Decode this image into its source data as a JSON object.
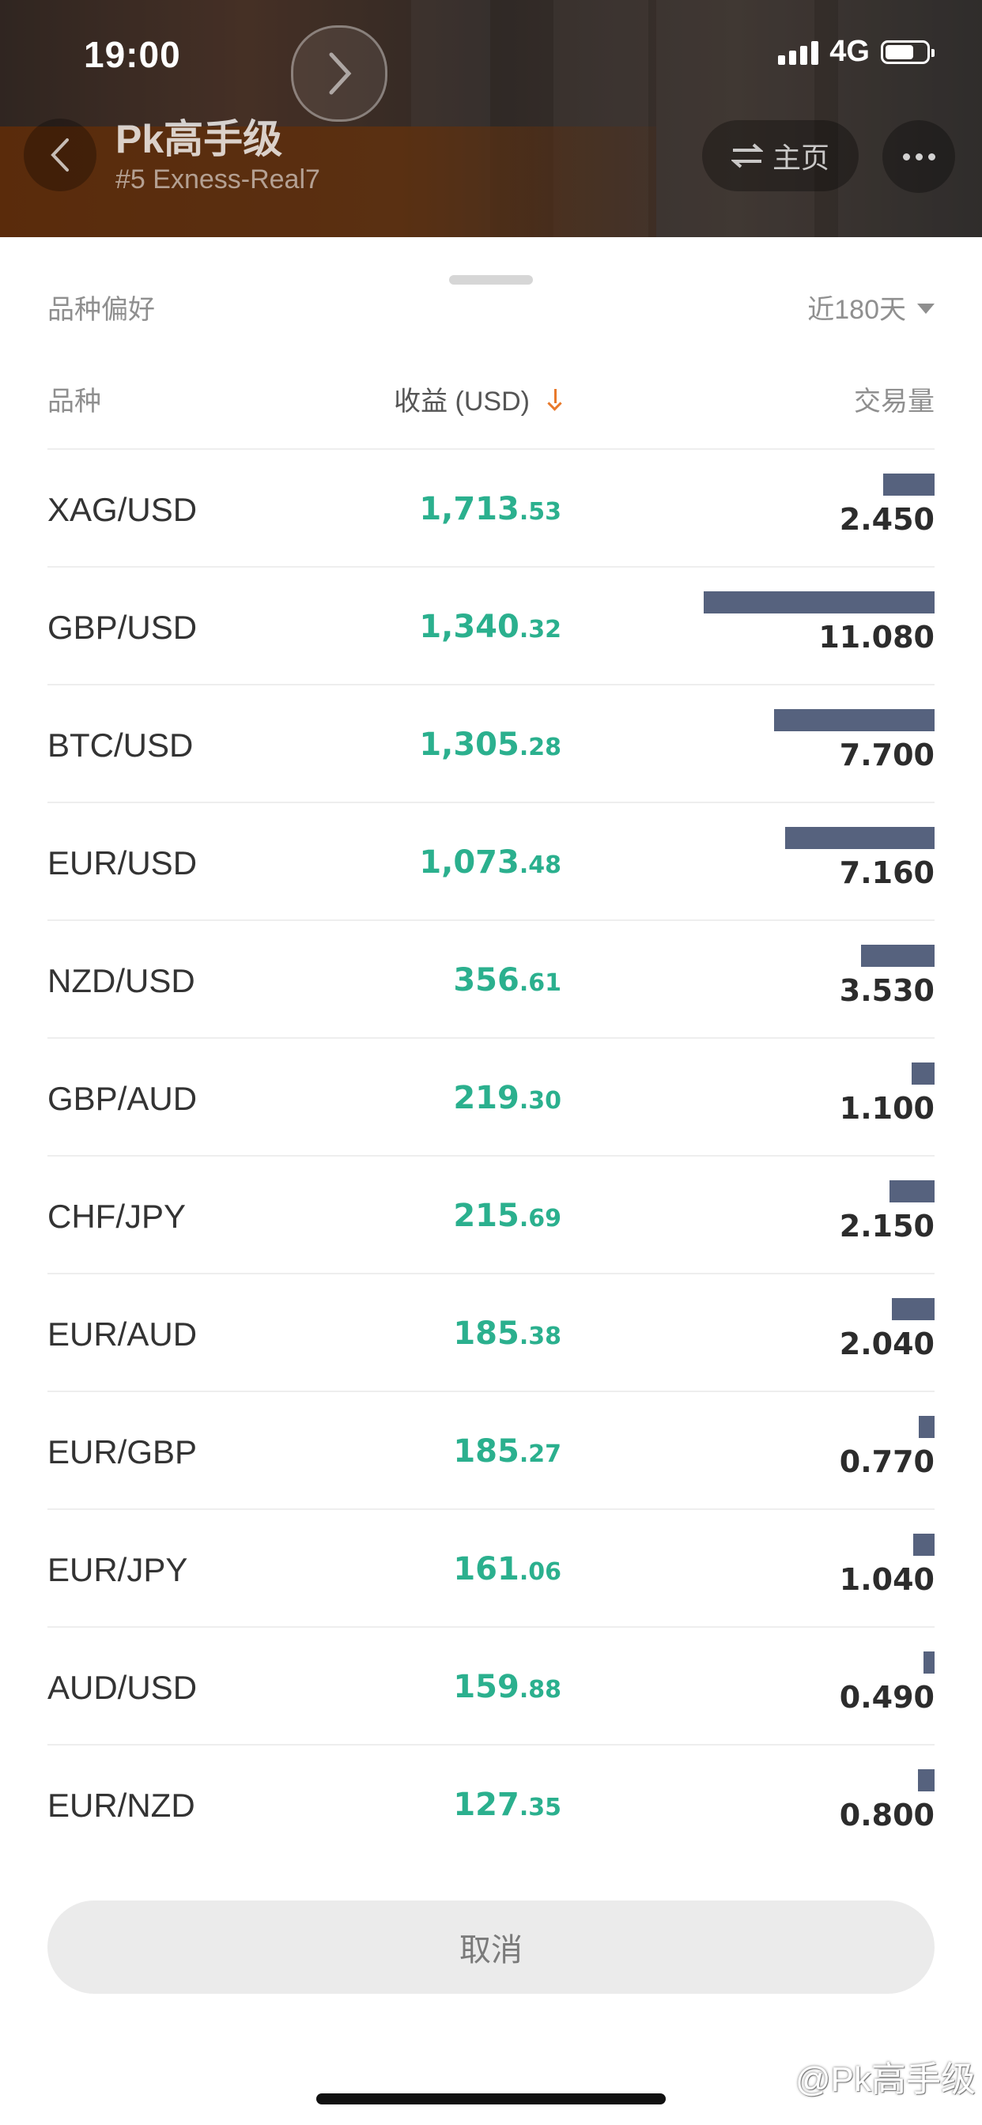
{
  "status_bar": {
    "time": "19:00",
    "network": "4G",
    "battery_level": 0.7
  },
  "header": {
    "title": "Pk高手级",
    "subtitle": "#5 Exness-Real7",
    "home_label": "主页"
  },
  "sheet": {
    "title": "品种偏好",
    "period": "近180天",
    "columns": {
      "instrument": "品种",
      "profit": "收益 (USD)",
      "volume": "交易量"
    },
    "rows": [
      {
        "symbol": "XAG/USD",
        "profit_int": "1,713",
        "profit_dec": ".53",
        "volume": "2.450",
        "volume_value": 2.45
      },
      {
        "symbol": "GBP/USD",
        "profit_int": "1,340",
        "profit_dec": ".32",
        "volume": "11.080",
        "volume_value": 11.08
      },
      {
        "symbol": "BTC/USD",
        "profit_int": "1,305",
        "profit_dec": ".28",
        "volume": "7.700",
        "volume_value": 7.7
      },
      {
        "symbol": "EUR/USD",
        "profit_int": "1,073",
        "profit_dec": ".48",
        "volume": "7.160",
        "volume_value": 7.16
      },
      {
        "symbol": "NZD/USD",
        "profit_int": "356",
        "profit_dec": ".61",
        "volume": "3.530",
        "volume_value": 3.53
      },
      {
        "symbol": "GBP/AUD",
        "profit_int": "219",
        "profit_dec": ".30",
        "volume": "1.100",
        "volume_value": 1.1
      },
      {
        "symbol": "CHF/JPY",
        "profit_int": "215",
        "profit_dec": ".69",
        "volume": "2.150",
        "volume_value": 2.15
      },
      {
        "symbol": "EUR/AUD",
        "profit_int": "185",
        "profit_dec": ".38",
        "volume": "2.040",
        "volume_value": 2.04
      },
      {
        "symbol": "EUR/GBP",
        "profit_int": "185",
        "profit_dec": ".27",
        "volume": "0.770",
        "volume_value": 0.77
      },
      {
        "symbol": "EUR/JPY",
        "profit_int": "161",
        "profit_dec": ".06",
        "volume": "1.040",
        "volume_value": 1.04
      },
      {
        "symbol": "AUD/USD",
        "profit_int": "159",
        "profit_dec": ".88",
        "volume": "0.490",
        "volume_value": 0.49
      },
      {
        "symbol": "EUR/NZD",
        "profit_int": "127",
        "profit_dec": ".35",
        "volume": "0.800",
        "volume_value": 0.8
      }
    ],
    "cancel_label": "取消"
  },
  "watermark": "@Pk高手级",
  "colors": {
    "profit": "#2bb08e",
    "volume_bar": "#56627e",
    "sort_arrow": "#e8792b",
    "header_orange": "#8a4312"
  },
  "icons": {
    "back": "chevron-left-icon",
    "forward": "chevron-right-icon",
    "swap": "swap-arrows-icon",
    "more": "more-dots-icon",
    "sort": "arrow-down-icon"
  }
}
